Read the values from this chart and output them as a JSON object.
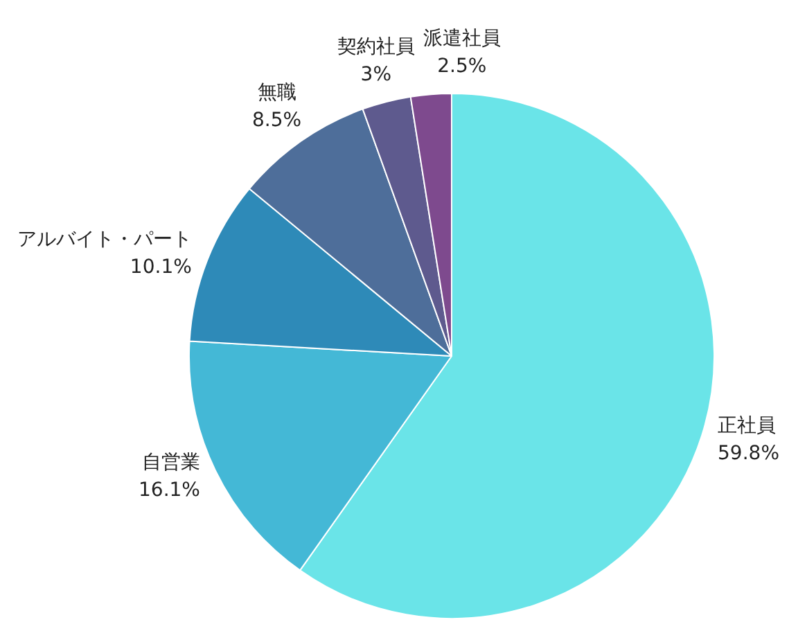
{
  "chart_data": {
    "type": "pie",
    "categories": [
      "正社員",
      "自営業",
      "アルバイト・パート",
      "無職",
      "契約社員",
      "派遣社員"
    ],
    "values": [
      59.8,
      16.1,
      10.1,
      8.5,
      3,
      2.5
    ],
    "colors": [
      "#6ae4e8",
      "#44b8d6",
      "#2e8ab8",
      "#4e6e9a",
      "#5e5a8e",
      "#7e4a8e"
    ],
    "value_labels": [
      "59.8%",
      "16.1%",
      "10.1%",
      "8.5%",
      "3%",
      "2.5%"
    ],
    "legend": false
  }
}
